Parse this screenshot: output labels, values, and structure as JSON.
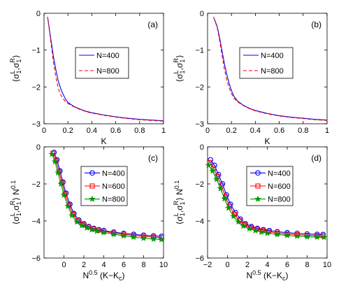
{
  "chart_data": [
    {
      "type": "line",
      "panel_label": "(a)",
      "xlabel": "K",
      "ylabel_main": "⟨σ",
      "ylabel_sub1": "1",
      "ylabel_sup1": "L",
      "ylabel_comma": ",σ",
      "ylabel_sub2": "1",
      "ylabel_sup2": "R",
      "ylabel_close": "⟩",
      "ylabel_power": "",
      "xlim": [
        0,
        1
      ],
      "ylim": [
        -3,
        0
      ],
      "xticks": [
        0,
        0.2,
        0.4,
        0.6,
        0.8,
        1
      ],
      "xtick_labels": [
        "0",
        "0.2",
        "0.4",
        "0.6",
        "0.8",
        "1"
      ],
      "yticks": [
        -3,
        -2,
        -1,
        0
      ],
      "ytick_labels": [
        "−3",
        "−2",
        "−1",
        "0"
      ],
      "legend_position": "center",
      "series": [
        {
          "name": "N=400",
          "color": "#0000ff",
          "style": "solid",
          "marker": "none",
          "x": [
            0.03,
            0.05,
            0.08,
            0.1,
            0.12,
            0.14,
            0.16,
            0.18,
            0.2,
            0.25,
            0.3,
            0.35,
            0.4,
            0.5,
            0.6,
            0.7,
            0.8,
            0.9,
            1.0
          ],
          "y": [
            -0.1,
            -0.55,
            -1.2,
            -1.55,
            -1.85,
            -2.05,
            -2.2,
            -2.33,
            -2.42,
            -2.53,
            -2.6,
            -2.66,
            -2.7,
            -2.76,
            -2.81,
            -2.85,
            -2.88,
            -2.9,
            -2.92
          ]
        },
        {
          "name": "N=800",
          "color": "#ff0000",
          "style": "dashed",
          "marker": "none",
          "x": [
            0.03,
            0.05,
            0.08,
            0.1,
            0.12,
            0.14,
            0.16,
            0.18,
            0.2,
            0.25,
            0.3,
            0.35,
            0.4,
            0.5,
            0.6,
            0.7,
            0.8,
            0.9,
            1.0
          ],
          "y": [
            -0.1,
            -0.6,
            -1.35,
            -1.75,
            -2.05,
            -2.22,
            -2.32,
            -2.4,
            -2.45,
            -2.54,
            -2.61,
            -2.67,
            -2.71,
            -2.77,
            -2.82,
            -2.86,
            -2.89,
            -2.91,
            -2.93
          ]
        }
      ]
    },
    {
      "type": "line",
      "panel_label": "(b)",
      "xlabel": "K",
      "ylabel_main": "⟨σ",
      "ylabel_sub1": "1",
      "ylabel_sup1": "L",
      "ylabel_comma": ",σ",
      "ylabel_sub2": "1",
      "ylabel_sup2": "R",
      "ylabel_close": "⟩",
      "ylabel_power": "",
      "xlim": [
        0,
        1
      ],
      "ylim": [
        -3,
        0
      ],
      "xticks": [
        0,
        0.2,
        0.4,
        0.6,
        0.8,
        1
      ],
      "xtick_labels": [
        "0",
        "0.2",
        "0.4",
        "0.6",
        "0.8",
        "1"
      ],
      "yticks": [
        -3,
        -2,
        -1,
        0
      ],
      "ytick_labels": [
        "−3",
        "−2",
        "−1",
        "0"
      ],
      "legend_position": "center",
      "series": [
        {
          "name": "N=400",
          "color": "#0000ff",
          "style": "solid",
          "marker": "none",
          "x": [
            0.05,
            0.08,
            0.1,
            0.12,
            0.14,
            0.16,
            0.18,
            0.2,
            0.22,
            0.25,
            0.3,
            0.35,
            0.4,
            0.5,
            0.6,
            0.7,
            0.8,
            0.9,
            1.0
          ],
          "y": [
            -0.1,
            -0.35,
            -0.65,
            -1.0,
            -1.35,
            -1.65,
            -1.9,
            -2.1,
            -2.25,
            -2.38,
            -2.5,
            -2.58,
            -2.64,
            -2.72,
            -2.78,
            -2.82,
            -2.85,
            -2.88,
            -2.9
          ]
        },
        {
          "name": "N=800",
          "color": "#ff0000",
          "style": "dashed",
          "marker": "none",
          "x": [
            0.05,
            0.08,
            0.1,
            0.12,
            0.14,
            0.16,
            0.18,
            0.2,
            0.22,
            0.25,
            0.3,
            0.35,
            0.4,
            0.5,
            0.6,
            0.7,
            0.8,
            0.9,
            1.0
          ],
          "y": [
            -0.1,
            -0.38,
            -0.72,
            -1.12,
            -1.5,
            -1.8,
            -2.02,
            -2.18,
            -2.3,
            -2.4,
            -2.51,
            -2.59,
            -2.65,
            -2.73,
            -2.79,
            -2.83,
            -2.86,
            -2.89,
            -2.91
          ]
        }
      ]
    },
    {
      "type": "line",
      "panel_label": "(c)",
      "xlabel_main": "N",
      "xlabel_sup": "0.5",
      "xlabel_rest": " (K−K",
      "xlabel_sub": "c",
      "xlabel_close": ")",
      "ylabel_main": "⟨σ",
      "ylabel_sub1": "1",
      "ylabel_sup1": "L",
      "ylabel_comma": ",σ",
      "ylabel_sub2": "1",
      "ylabel_sup2": "R",
      "ylabel_close": "⟩ N",
      "ylabel_power": "0.1",
      "xlim": [
        -2,
        10
      ],
      "ylim": [
        -6,
        0
      ],
      "xticks": [
        0,
        2,
        4,
        6,
        8,
        10
      ],
      "xtick_labels": [
        "0",
        "2",
        "4",
        "6",
        "8",
        "10"
      ],
      "yticks": [
        -6,
        -4,
        -2,
        0
      ],
      "ytick_labels": [
        "−6",
        "−4",
        "−2",
        "0"
      ],
      "legend_position": "top-right",
      "series": [
        {
          "name": "N=400",
          "color": "#0000ff",
          "style": "solid",
          "marker": "circle",
          "x": [
            -1.0,
            -0.7,
            -0.4,
            -0.1,
            0.2,
            0.6,
            1.0,
            1.5,
            2.0,
            2.5,
            3.0,
            3.5,
            4.0,
            5.0,
            6.0,
            7.0,
            8.0,
            9.0,
            9.8
          ],
          "y": [
            -0.3,
            -0.7,
            -1.3,
            -1.9,
            -2.5,
            -3.1,
            -3.6,
            -3.95,
            -4.15,
            -4.3,
            -4.4,
            -4.47,
            -4.52,
            -4.6,
            -4.67,
            -4.72,
            -4.77,
            -4.8,
            -4.83
          ]
        },
        {
          "name": "N=600",
          "color": "#ff0000",
          "style": "solid",
          "marker": "square",
          "x": [
            -1.1,
            -0.8,
            -0.5,
            -0.2,
            0.1,
            0.5,
            0.9,
            1.4,
            1.9,
            2.4,
            2.9,
            3.4,
            4.0,
            5.0,
            6.0,
            7.0,
            8.0,
            9.0,
            9.8
          ],
          "y": [
            -0.35,
            -0.75,
            -1.35,
            -1.95,
            -2.55,
            -3.15,
            -3.65,
            -4.0,
            -4.2,
            -4.33,
            -4.43,
            -4.5,
            -4.56,
            -4.65,
            -4.72,
            -4.78,
            -4.83,
            -4.87,
            -4.9
          ]
        },
        {
          "name": "N=800",
          "color": "#009900",
          "style": "solid",
          "marker": "star",
          "x": [
            -1.2,
            -0.9,
            -0.6,
            -0.3,
            0.0,
            0.4,
            0.8,
            1.3,
            1.8,
            2.3,
            2.8,
            3.3,
            4.0,
            5.0,
            6.0,
            7.0,
            8.0,
            9.0,
            9.8
          ],
          "y": [
            -0.4,
            -0.8,
            -1.4,
            -2.0,
            -2.6,
            -3.2,
            -3.7,
            -4.05,
            -4.25,
            -4.37,
            -4.47,
            -4.55,
            -4.62,
            -4.72,
            -4.8,
            -4.87,
            -4.93,
            -4.98,
            -5.0
          ]
        }
      ]
    },
    {
      "type": "line",
      "panel_label": "(d)",
      "xlabel_main": "N",
      "xlabel_sup": "0.5",
      "xlabel_rest": " (K−K",
      "xlabel_sub": "c",
      "xlabel_close": ")",
      "ylabel_main": "⟨σ",
      "ylabel_sub1": "1",
      "ylabel_sup1": "L",
      "ylabel_comma": ",σ",
      "ylabel_sub2": "1",
      "ylabel_sup2": "R",
      "ylabel_close": "⟩ N",
      "ylabel_power": "0.1",
      "xlim": [
        -2,
        10
      ],
      "ylim": [
        -6,
        0
      ],
      "xticks": [
        -2,
        0,
        2,
        4,
        6,
        8,
        10
      ],
      "xtick_labels": [
        "−2",
        "0",
        "2",
        "4",
        "6",
        "8",
        "10"
      ],
      "yticks": [
        -6,
        -4,
        -2,
        0
      ],
      "ytick_labels": [
        "−6",
        "−4",
        "−2",
        "0"
      ],
      "legend_position": "top-right",
      "series": [
        {
          "name": "N=400",
          "color": "#0000ff",
          "style": "solid",
          "marker": "circle",
          "x": [
            -1.7,
            -1.3,
            -0.9,
            -0.5,
            -0.1,
            0.3,
            0.8,
            1.3,
            1.8,
            2.4,
            3.0,
            3.6,
            4.2,
            5.0,
            6.0,
            7.0,
            8.0,
            9.0,
            9.6
          ],
          "y": [
            -0.7,
            -1.0,
            -1.5,
            -2.0,
            -2.6,
            -3.1,
            -3.55,
            -3.9,
            -4.15,
            -4.3,
            -4.4,
            -4.47,
            -4.52,
            -4.58,
            -4.63,
            -4.67,
            -4.7,
            -4.72,
            -4.73
          ]
        },
        {
          "name": "N=600",
          "color": "#ff0000",
          "style": "solid",
          "marker": "square",
          "x": [
            -1.8,
            -1.4,
            -1.0,
            -0.6,
            -0.2,
            0.2,
            0.7,
            1.2,
            1.7,
            2.3,
            2.9,
            3.5,
            4.1,
            5.0,
            6.0,
            7.0,
            8.0,
            9.0,
            9.6
          ],
          "y": [
            -0.85,
            -1.15,
            -1.6,
            -2.1,
            -2.7,
            -3.2,
            -3.65,
            -3.98,
            -4.2,
            -4.35,
            -4.45,
            -4.52,
            -4.58,
            -4.65,
            -4.7,
            -4.74,
            -4.77,
            -4.79,
            -4.8
          ]
        },
        {
          "name": "N=800",
          "color": "#009900",
          "style": "solid",
          "marker": "star",
          "x": [
            -1.9,
            -1.5,
            -1.1,
            -0.7,
            -0.3,
            0.1,
            0.6,
            1.1,
            1.6,
            2.2,
            2.8,
            3.4,
            4.0,
            5.0,
            6.0,
            7.0,
            8.0,
            9.0,
            9.7
          ],
          "y": [
            -1.0,
            -1.3,
            -1.75,
            -2.25,
            -2.8,
            -3.3,
            -3.75,
            -4.05,
            -4.27,
            -4.42,
            -4.52,
            -4.6,
            -4.66,
            -4.73,
            -4.78,
            -4.82,
            -4.85,
            -4.87,
            -4.88
          ]
        }
      ]
    }
  ]
}
